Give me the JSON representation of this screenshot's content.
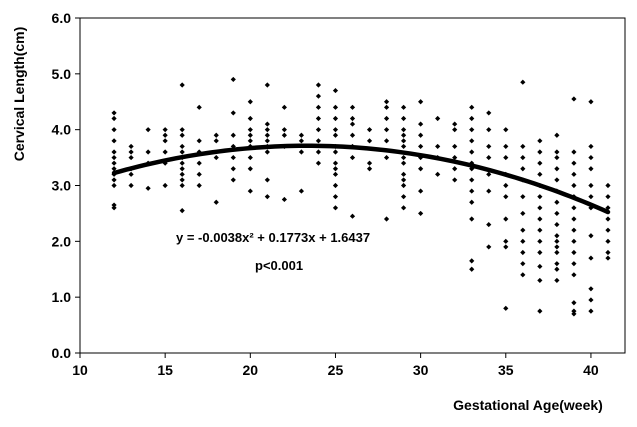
{
  "chart_data": {
    "type": "scatter",
    "title": "",
    "xlabel": "Gestational Age(week)",
    "ylabel": "Cervical Length(cm)",
    "xlim": [
      10,
      42
    ],
    "ylim": [
      0,
      6
    ],
    "x_ticks": [
      "10",
      "15",
      "20",
      "25",
      "30",
      "35",
      "40"
    ],
    "y_ticks": [
      "0.0",
      "1.0",
      "2.0",
      "3.0",
      "4.0",
      "5.0",
      "6.0"
    ],
    "grid": false,
    "legend": "none",
    "marker_shape": "diamond",
    "colors": {
      "points": "#000000",
      "fit_line": "#000000",
      "axes": "#000000"
    },
    "annotations": {
      "equation": "y = -0.0038x² + 0.1773x + 1.6437",
      "pvalue": "p<0.001"
    },
    "fit_curve": {
      "type": "quadratic",
      "a": -0.0038,
      "b": 0.1773,
      "c": 1.6437,
      "x_range": [
        12,
        41
      ]
    },
    "series": [
      {
        "values": [
          [
            12,
            2.6
          ],
          [
            12,
            2.65
          ],
          [
            12,
            3.0
          ],
          [
            12,
            3.1
          ],
          [
            12,
            3.2
          ],
          [
            12,
            3.3
          ],
          [
            12,
            3.4
          ],
          [
            12,
            3.5
          ],
          [
            12,
            3.6
          ],
          [
            12,
            3.8
          ],
          [
            12,
            4.0
          ],
          [
            12,
            4.2
          ],
          [
            12,
            4.3
          ],
          [
            13,
            3.0
          ],
          [
            13,
            3.2
          ],
          [
            13,
            3.3
          ],
          [
            13,
            3.5
          ],
          [
            13,
            3.6
          ],
          [
            13,
            3.7
          ],
          [
            14,
            2.95
          ],
          [
            14,
            3.4
          ],
          [
            14,
            3.6
          ],
          [
            14,
            4.0
          ],
          [
            15,
            3.0
          ],
          [
            15,
            3.4
          ],
          [
            15,
            3.6
          ],
          [
            15,
            3.8
          ],
          [
            15,
            3.9
          ],
          [
            15,
            4.0
          ],
          [
            16,
            2.55
          ],
          [
            16,
            3.0
          ],
          [
            16,
            3.1
          ],
          [
            16,
            3.2
          ],
          [
            16,
            3.3
          ],
          [
            16,
            3.4
          ],
          [
            16,
            3.5
          ],
          [
            16,
            3.6
          ],
          [
            16,
            3.7
          ],
          [
            16,
            3.9
          ],
          [
            16,
            4.0
          ],
          [
            16,
            4.8
          ],
          [
            17,
            3.0
          ],
          [
            17,
            3.2
          ],
          [
            17,
            3.4
          ],
          [
            17,
            3.6
          ],
          [
            17,
            3.8
          ],
          [
            17,
            4.4
          ],
          [
            18,
            2.7
          ],
          [
            18,
            3.5
          ],
          [
            18,
            3.8
          ],
          [
            18,
            3.9
          ],
          [
            19,
            3.1
          ],
          [
            19,
            3.3
          ],
          [
            19,
            3.5
          ],
          [
            19,
            3.7
          ],
          [
            19,
            3.9
          ],
          [
            19,
            4.3
          ],
          [
            19,
            4.9
          ],
          [
            20,
            2.9
          ],
          [
            20,
            3.3
          ],
          [
            20,
            3.5
          ],
          [
            20,
            3.7
          ],
          [
            20,
            3.8
          ],
          [
            20,
            3.9
          ],
          [
            20,
            4.0
          ],
          [
            20,
            4.2
          ],
          [
            20,
            4.5
          ],
          [
            21,
            2.8
          ],
          [
            21,
            3.1
          ],
          [
            21,
            3.6
          ],
          [
            21,
            3.7
          ],
          [
            21,
            3.8
          ],
          [
            21,
            3.9
          ],
          [
            21,
            4.0
          ],
          [
            21,
            4.1
          ],
          [
            21,
            4.8
          ],
          [
            22,
            2.75
          ],
          [
            22,
            3.7
          ],
          [
            22,
            3.9
          ],
          [
            22,
            4.0
          ],
          [
            22,
            4.4
          ],
          [
            23,
            2.9
          ],
          [
            23,
            3.6
          ],
          [
            23,
            3.8
          ],
          [
            23,
            3.9
          ],
          [
            24,
            3.4
          ],
          [
            24,
            3.6
          ],
          [
            24,
            3.8
          ],
          [
            24,
            4.0
          ],
          [
            24,
            4.2
          ],
          [
            24,
            4.4
          ],
          [
            24,
            4.6
          ],
          [
            24,
            4.8
          ],
          [
            25,
            2.6
          ],
          [
            25,
            2.8
          ],
          [
            25,
            3.0
          ],
          [
            25,
            3.2
          ],
          [
            25,
            3.3
          ],
          [
            25,
            3.4
          ],
          [
            25,
            3.6
          ],
          [
            25,
            3.7
          ],
          [
            25,
            3.9
          ],
          [
            25,
            4.0
          ],
          [
            25,
            4.2
          ],
          [
            25,
            4.4
          ],
          [
            25,
            4.7
          ],
          [
            26,
            2.45
          ],
          [
            26,
            3.5
          ],
          [
            26,
            3.7
          ],
          [
            26,
            3.9
          ],
          [
            26,
            4.1
          ],
          [
            26,
            4.2
          ],
          [
            26,
            4.4
          ],
          [
            27,
            3.3
          ],
          [
            27,
            3.4
          ],
          [
            27,
            3.8
          ],
          [
            27,
            4.0
          ],
          [
            28,
            2.4
          ],
          [
            28,
            3.5
          ],
          [
            28,
            3.8
          ],
          [
            28,
            4.0
          ],
          [
            28,
            4.2
          ],
          [
            28,
            4.4
          ],
          [
            28,
            4.5
          ],
          [
            29,
            2.6
          ],
          [
            29,
            2.8
          ],
          [
            29,
            3.0
          ],
          [
            29,
            3.1
          ],
          [
            29,
            3.2
          ],
          [
            29,
            3.4
          ],
          [
            29,
            3.5
          ],
          [
            29,
            3.7
          ],
          [
            29,
            3.8
          ],
          [
            29,
            3.9
          ],
          [
            29,
            4.0
          ],
          [
            29,
            4.2
          ],
          [
            29,
            4.4
          ],
          [
            30,
            2.5
          ],
          [
            30,
            2.9
          ],
          [
            30,
            3.3
          ],
          [
            30,
            3.5
          ],
          [
            30,
            3.7
          ],
          [
            30,
            3.9
          ],
          [
            30,
            4.1
          ],
          [
            30,
            4.5
          ],
          [
            31,
            3.2
          ],
          [
            31,
            3.5
          ],
          [
            31,
            3.7
          ],
          [
            31,
            4.2
          ],
          [
            32,
            3.1
          ],
          [
            32,
            3.3
          ],
          [
            32,
            3.5
          ],
          [
            32,
            3.7
          ],
          [
            32,
            4.0
          ],
          [
            32,
            4.1
          ],
          [
            33,
            1.5
          ],
          [
            33,
            1.65
          ],
          [
            33,
            2.4
          ],
          [
            33,
            2.7
          ],
          [
            33,
            2.9
          ],
          [
            33,
            3.1
          ],
          [
            33,
            3.3
          ],
          [
            33,
            3.4
          ],
          [
            33,
            3.6
          ],
          [
            33,
            3.8
          ],
          [
            33,
            4.0
          ],
          [
            33,
            4.2
          ],
          [
            33,
            4.4
          ],
          [
            34,
            1.9
          ],
          [
            34,
            2.3
          ],
          [
            34,
            2.9
          ],
          [
            34,
            3.2
          ],
          [
            34,
            3.5
          ],
          [
            34,
            3.7
          ],
          [
            34,
            4.0
          ],
          [
            34,
            4.3
          ],
          [
            35,
            0.8
          ],
          [
            35,
            1.9
          ],
          [
            35,
            2.0
          ],
          [
            35,
            2.4
          ],
          [
            35,
            2.8
          ],
          [
            35,
            3.0
          ],
          [
            35,
            3.2
          ],
          [
            35,
            3.5
          ],
          [
            35,
            3.7
          ],
          [
            35,
            4.0
          ],
          [
            36,
            1.4
          ],
          [
            36,
            1.6
          ],
          [
            36,
            1.8
          ],
          [
            36,
            2.0
          ],
          [
            36,
            2.2
          ],
          [
            36,
            2.5
          ],
          [
            36,
            2.8
          ],
          [
            36,
            3.1
          ],
          [
            36,
            3.3
          ],
          [
            36,
            3.5
          ],
          [
            36,
            3.7
          ],
          [
            36,
            4.85
          ],
          [
            37,
            0.75
          ],
          [
            37,
            1.3
          ],
          [
            37,
            1.55
          ],
          [
            37,
            1.8
          ],
          [
            37,
            2.0
          ],
          [
            37,
            2.2
          ],
          [
            37,
            2.4
          ],
          [
            37,
            2.6
          ],
          [
            37,
            2.8
          ],
          [
            37,
            3.0
          ],
          [
            37,
            3.2
          ],
          [
            37,
            3.4
          ],
          [
            37,
            3.6
          ],
          [
            37,
            3.8
          ],
          [
            38,
            1.3
          ],
          [
            38,
            1.5
          ],
          [
            38,
            1.6
          ],
          [
            38,
            1.8
          ],
          [
            38,
            1.9
          ],
          [
            38,
            2.0
          ],
          [
            38,
            2.1
          ],
          [
            38,
            2.3
          ],
          [
            38,
            2.5
          ],
          [
            38,
            2.7
          ],
          [
            38,
            2.9
          ],
          [
            38,
            3.1
          ],
          [
            38,
            3.3
          ],
          [
            38,
            3.5
          ],
          [
            38,
            3.6
          ],
          [
            38,
            3.9
          ],
          [
            39,
            0.7
          ],
          [
            39,
            0.75
          ],
          [
            39,
            0.9
          ],
          [
            39,
            1.4
          ],
          [
            39,
            1.6
          ],
          [
            39,
            1.8
          ],
          [
            39,
            2.0
          ],
          [
            39,
            2.2
          ],
          [
            39,
            2.4
          ],
          [
            39,
            2.6
          ],
          [
            39,
            2.8
          ],
          [
            39,
            3.0
          ],
          [
            39,
            3.2
          ],
          [
            39,
            3.4
          ],
          [
            39,
            3.6
          ],
          [
            39,
            4.55
          ],
          [
            40,
            0.75
          ],
          [
            40,
            0.95
          ],
          [
            40,
            1.15
          ],
          [
            40,
            1.7
          ],
          [
            40,
            2.1
          ],
          [
            40,
            2.6
          ],
          [
            40,
            2.8
          ],
          [
            40,
            3.0
          ],
          [
            40,
            3.3
          ],
          [
            40,
            3.5
          ],
          [
            40,
            3.7
          ],
          [
            40,
            4.5
          ],
          [
            41,
            1.7
          ],
          [
            41,
            1.8
          ],
          [
            41,
            2.0
          ],
          [
            41,
            2.2
          ],
          [
            41,
            2.4
          ],
          [
            41,
            2.6
          ],
          [
            41,
            2.8
          ],
          [
            41,
            3.0
          ]
        ]
      }
    ]
  }
}
